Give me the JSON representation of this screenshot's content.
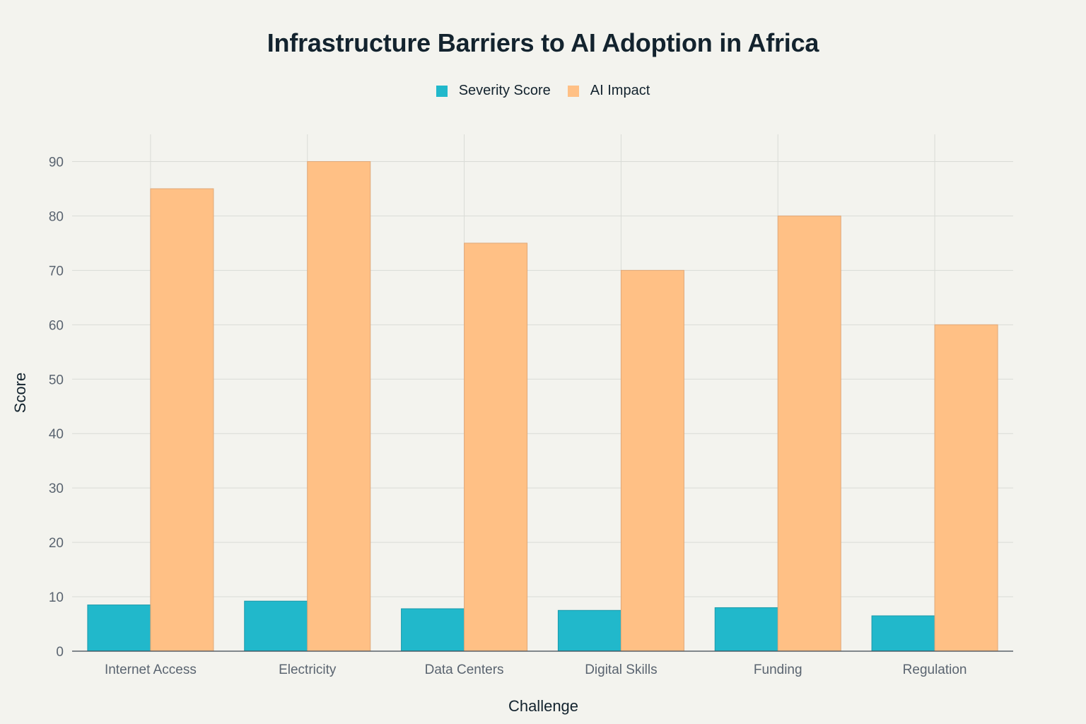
{
  "chart_data": {
    "type": "bar",
    "title": "Infrastructure Barriers to AI Adoption in Africa",
    "xlabel": "Challenge",
    "ylabel": "Score",
    "categories": [
      "Internet Access",
      "Electricity",
      "Data Centers",
      "Digital Skills",
      "Funding",
      "Regulation"
    ],
    "series": [
      {
        "name": "Severity Score",
        "color": "#21b8cb",
        "values": [
          8.5,
          9.2,
          7.8,
          7.5,
          8.0,
          6.5
        ]
      },
      {
        "name": "AI Impact",
        "color": "#ffc085",
        "values": [
          85,
          90,
          75,
          70,
          80,
          60
        ]
      }
    ],
    "ylim": [
      0,
      95
    ],
    "yticks": [
      0,
      10,
      20,
      30,
      40,
      50,
      60,
      70,
      80,
      90
    ],
    "grid": true,
    "legend_position": "top-center"
  }
}
